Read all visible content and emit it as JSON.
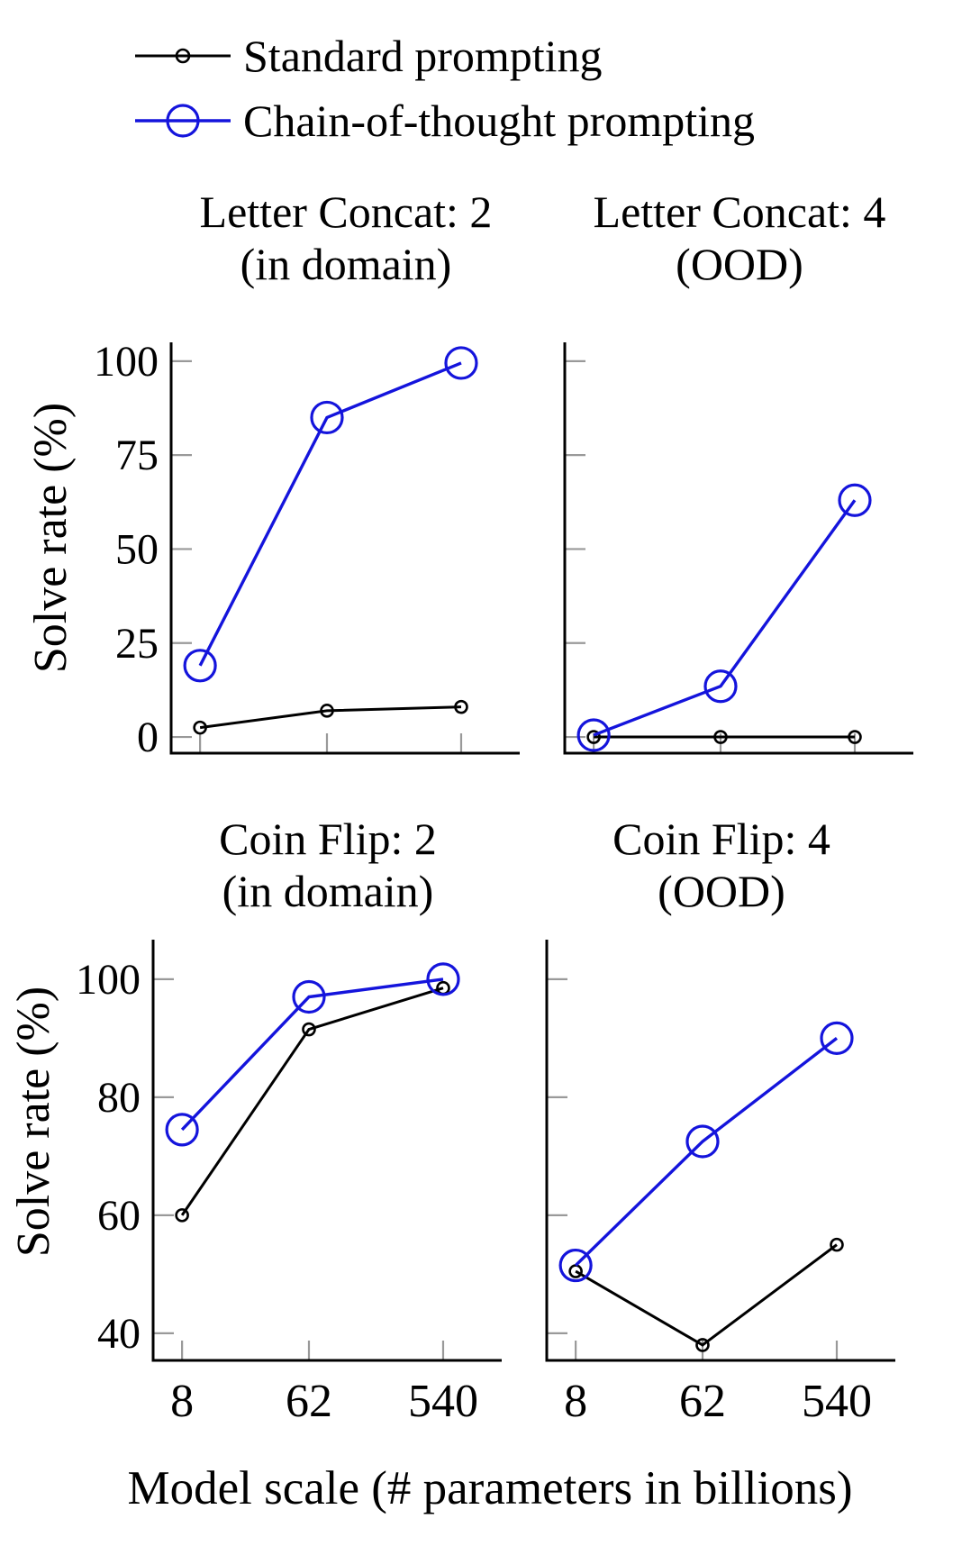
{
  "figure": {
    "background": "#ffffff"
  },
  "legend": {
    "items": [
      {
        "label": "Standard prompting",
        "color": "#000000"
      },
      {
        "label": "Chain-of-thought prompting",
        "color": "#1414dc"
      }
    ]
  },
  "axes": {
    "x_label": "Model scale (# parameters in billions)",
    "y_label": "Solve rate (%)",
    "x_tick_labels": [
      "8",
      "62",
      "540"
    ]
  },
  "chart_data": [
    {
      "type": "line",
      "title": "Letter Concat: 2",
      "subtitle": "(in domain)",
      "x": [
        8,
        62,
        540
      ],
      "x_scale": "log",
      "xlabel": "Model scale (# parameters in billions)",
      "ylabel": "Solve rate (%)",
      "ylim": [
        0,
        100
      ],
      "yticks": [
        0,
        25,
        50,
        75,
        100
      ],
      "grid": false,
      "series": [
        {
          "name": "Standard prompting",
          "values": [
            2.5,
            7,
            8
          ]
        },
        {
          "name": "Chain-of-thought prompting",
          "values": [
            19,
            85,
            99.5
          ]
        }
      ]
    },
    {
      "type": "line",
      "title": "Letter Concat: 4",
      "subtitle": "(OOD)",
      "x": [
        8,
        62,
        540
      ],
      "x_scale": "log",
      "xlabel": "Model scale (# parameters in billions)",
      "ylabel": "Solve rate (%)",
      "ylim": [
        0,
        100
      ],
      "yticks": [
        0,
        25,
        50,
        75,
        100
      ],
      "grid": false,
      "series": [
        {
          "name": "Standard prompting",
          "values": [
            0,
            0,
            0
          ]
        },
        {
          "name": "Chain-of-thought prompting",
          "values": [
            0.5,
            13.5,
            63
          ]
        }
      ]
    },
    {
      "type": "line",
      "title": "Coin Flip: 2",
      "subtitle": "(in domain)",
      "x": [
        8,
        62,
        540
      ],
      "x_scale": "log",
      "xlabel": "Model scale (# parameters in billions)",
      "ylabel": "Solve rate (%)",
      "ylim": [
        40,
        100
      ],
      "yticks": [
        40,
        60,
        80,
        100
      ],
      "grid": false,
      "series": [
        {
          "name": "Standard prompting",
          "values": [
            60,
            91.5,
            98.5
          ]
        },
        {
          "name": "Chain-of-thought prompting",
          "values": [
            74.5,
            97,
            100
          ]
        }
      ]
    },
    {
      "type": "line",
      "title": "Coin Flip: 4",
      "subtitle": "(OOD)",
      "x": [
        8,
        62,
        540
      ],
      "x_scale": "log",
      "xlabel": "Model scale (# parameters in billions)",
      "ylabel": "Solve rate (%)",
      "ylim": [
        40,
        100
      ],
      "yticks": [
        40,
        60,
        80,
        100
      ],
      "grid": false,
      "series": [
        {
          "name": "Standard prompting",
          "values": [
            50.5,
            38,
            55
          ]
        },
        {
          "name": "Chain-of-thought prompting",
          "values": [
            51.5,
            72.5,
            90
          ]
        }
      ]
    }
  ]
}
